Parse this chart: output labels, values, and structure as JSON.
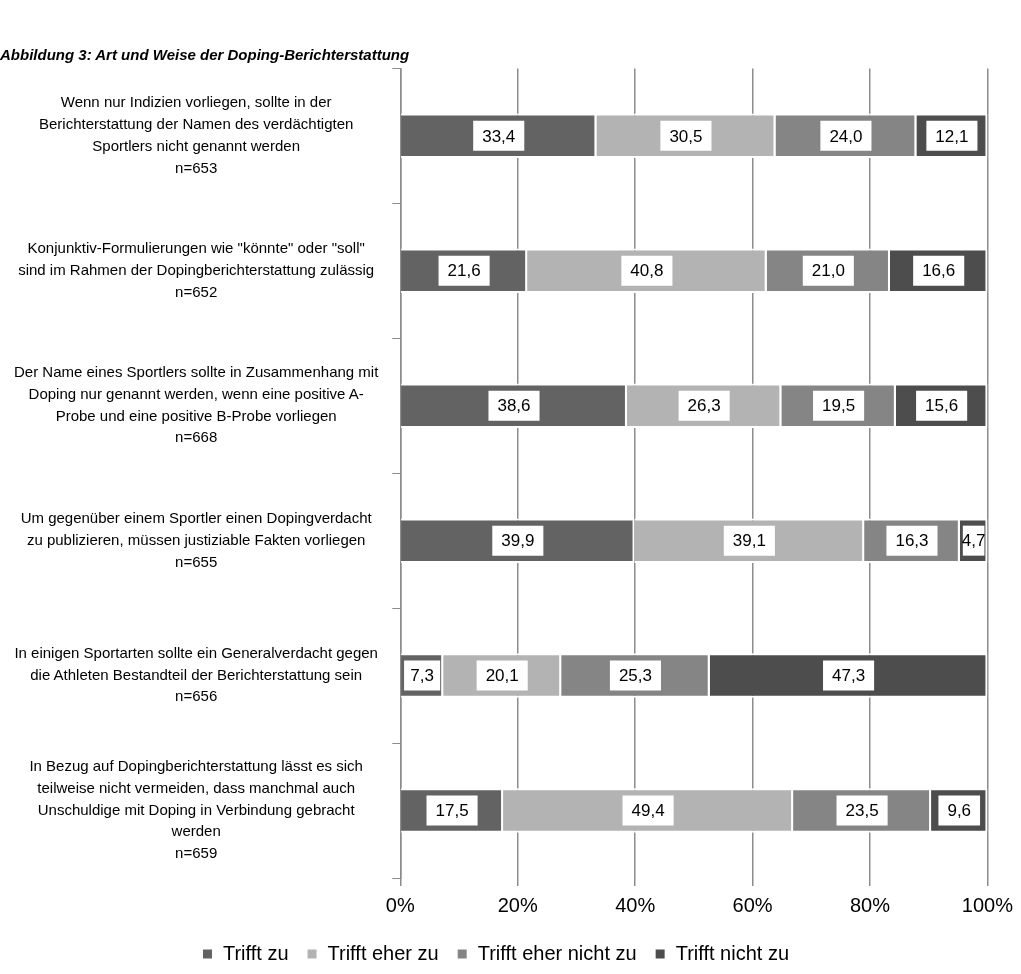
{
  "chart_data": {
    "type": "bar",
    "orientation": "horizontal",
    "stacked": true,
    "title": "Abbildung 3: Art und Weise der Doping-Berichterstattung",
    "categories": [
      "Wenn nur Indizien vorliegen, sollte in der\nBerichterstattung der Namen des verdächtigten\nSportlers nicht genannt werden\nn=653",
      "Konjunktiv-Formulierungen wie \"könnte\" oder \"soll\"\nsind im Rahmen der Dopingberichterstattung zulässig\nn=652",
      "Der Name eines Sportlers sollte in Zusammenhang mit\nDoping nur genannt werden, wenn eine positive A-\nProbe und eine positive B-Probe vorliegen\nn=668",
      "Um gegenüber einem Sportler einen Dopingverdacht\nzu publizieren, müssen justiziable Fakten vorliegen\nn=655",
      "In einigen Sportarten sollte ein Generalverdacht gegen\ndie Athleten Bestandteil der Berichterstattung sein\nn=656",
      "In Bezug auf Dopingberichterstattung lässt es sich\nteilweise nicht vermeiden, dass manchmal auch\nUnschuldige mit Doping in Verbindung gebracht\nwerden\nn=659"
    ],
    "series": [
      {
        "name": "Trifft zu",
        "color": "#636363",
        "values": [
          33.4,
          21.6,
          38.6,
          39.9,
          7.3,
          17.5
        ],
        "value_labels": [
          "33,4",
          "21,6",
          "38,6",
          "39,9",
          "7,3",
          "17,5"
        ]
      },
      {
        "name": "Trifft eher zu",
        "color": "#b3b3b3",
        "values": [
          30.5,
          40.8,
          26.3,
          39.1,
          20.1,
          49.4
        ],
        "value_labels": [
          "30,5",
          "40,8",
          "26,3",
          "39,1",
          "20,1",
          "49,4"
        ]
      },
      {
        "name": "Trifft eher nicht zu",
        "color": "#858585",
        "values": [
          24.0,
          21.0,
          19.5,
          16.3,
          25.3,
          23.5
        ],
        "value_labels": [
          "24,0",
          "21,0",
          "19,5",
          "16,3",
          "25,3",
          "23,5"
        ]
      },
      {
        "name": "Trifft nicht zu",
        "color": "#4d4d4d",
        "values": [
          12.1,
          16.6,
          15.6,
          4.7,
          47.3,
          9.6
        ],
        "value_labels": [
          "12,1",
          "16,6",
          "15,6",
          "4,7",
          "47,3",
          "9,6"
        ]
      }
    ],
    "xlim": [
      0,
      100
    ],
    "xticks": [
      {
        "value": 0,
        "label": "0%"
      },
      {
        "value": 20,
        "label": "20%"
      },
      {
        "value": 40,
        "label": "40%"
      },
      {
        "value": 60,
        "label": "60%"
      },
      {
        "value": 80,
        "label": "80%"
      },
      {
        "value": 100,
        "label": "100%"
      }
    ],
    "grid": "x",
    "legend": "bottom"
  }
}
